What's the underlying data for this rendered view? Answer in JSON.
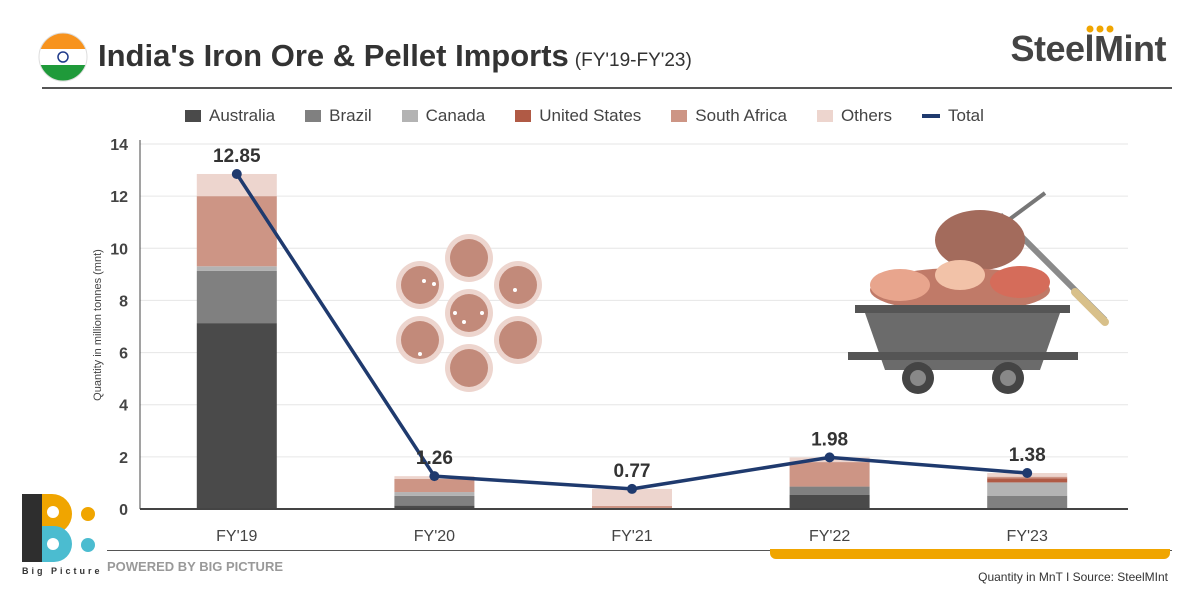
{
  "header": {
    "title": "India's Iron Ore & Pellet Imports",
    "subtitle": "(FY'19-FY'23)",
    "brand": "SteelMint"
  },
  "footer": {
    "powered_by": "POWERED BY BIG PICTURE",
    "logo_text": "Big Picture",
    "source": "Quantity in MnT  I  Source: SteelMInt"
  },
  "chart_data": {
    "type": "bar",
    "stacked": true,
    "title": "India's Iron Ore & Pellet Imports",
    "ylabel": "Quantity in million tonnes (mnt)",
    "xlabel": "",
    "ylim": [
      0,
      14
    ],
    "yticks": [
      0,
      2,
      4,
      6,
      8,
      10,
      12,
      14
    ],
    "grid": true,
    "legend_position": "top",
    "categories": [
      "FY'19",
      "FY'20",
      "FY'21",
      "FY'22",
      "FY'23"
    ],
    "series": [
      {
        "name": "Australia",
        "color": "#4a4a4a",
        "values": [
          7.13,
          0.13,
          0.0,
          0.55,
          0.0
        ]
      },
      {
        "name": "Brazil",
        "color": "#808080",
        "values": [
          2.0,
          0.37,
          0.0,
          0.31,
          0.51
        ]
      },
      {
        "name": "Canada",
        "color": "#b3b3b3",
        "values": [
          0.18,
          0.15,
          0.0,
          0.0,
          0.51
        ]
      },
      {
        "name": "United States",
        "color": "#b05a45",
        "values": [
          0.0,
          0.0,
          0.0,
          0.0,
          0.16
        ]
      },
      {
        "name": "South Africa",
        "color": "#cd9585",
        "values": [
          2.69,
          0.5,
          0.12,
          0.94,
          0.06
        ]
      },
      {
        "name": "Others",
        "color": "#edd5ce",
        "values": [
          0.85,
          0.11,
          0.65,
          0.18,
          0.14
        ]
      }
    ],
    "line": {
      "name": "Total",
      "color": "#1f3a6e",
      "values": [
        12.85,
        1.26,
        0.77,
        1.98,
        1.38
      ],
      "labels": [
        "12.85",
        "1.26",
        "0.77",
        "1.98",
        "1.38"
      ]
    }
  }
}
